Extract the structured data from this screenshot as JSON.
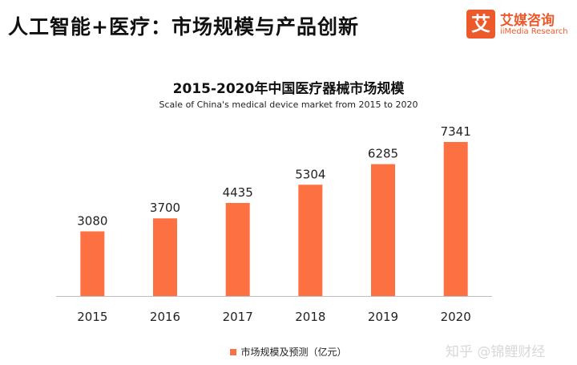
{
  "slide": {
    "title": "人工智能+医疗：市场规模与产品创新"
  },
  "logo": {
    "badge": "艾",
    "name_cn": "艾媒咨询",
    "name_en": "iiMedia Research"
  },
  "watermark": "知乎 @锦鲤财经",
  "colors": {
    "bar": "#fd7041",
    "brand": "#ec5a2c"
  },
  "chart_data": {
    "type": "bar",
    "title": "2015-2020年中国医疗器械市场规模",
    "subtitle": "Scale of China's medical device market from 2015 to 2020",
    "categories": [
      "2015",
      "2016",
      "2017",
      "2018",
      "2019",
      "2020"
    ],
    "series": [
      {
        "name": "市场规模及预测（亿元）",
        "values": [
          3080,
          3700,
          4435,
          5304,
          6285,
          7341
        ]
      }
    ],
    "data_labels": [
      "3080",
      "3700",
      "4435",
      "5304",
      "6285",
      "7341"
    ],
    "ylim": [
      0,
      7341
    ],
    "grid": false,
    "legend_position": "bottom",
    "xlabel": "",
    "ylabel": ""
  }
}
